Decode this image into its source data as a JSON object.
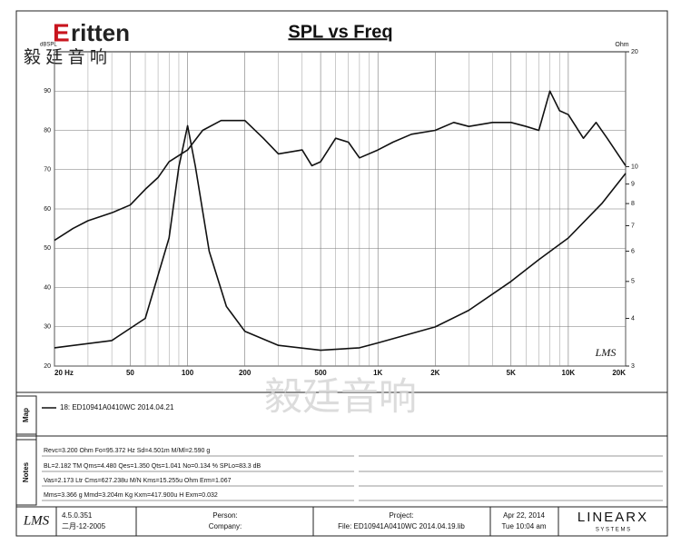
{
  "chart_data": {
    "type": "line",
    "title": "SPL vs Freq",
    "xscale": "log",
    "xlim": [
      20,
      20000
    ],
    "xticks": [
      {
        "value": 20,
        "label": "20 Hz"
      },
      50,
      100,
      200,
      500,
      {
        "value": 1000,
        "label": "1K"
      },
      {
        "value": 2000,
        "label": "2K"
      },
      {
        "value": 5000,
        "label": "5K"
      },
      {
        "value": 10000,
        "label": "10K"
      },
      {
        "value": 20000,
        "label": "20K"
      }
    ],
    "xgrid_minor": [
      30,
      40,
      60,
      70,
      80,
      90,
      300,
      400,
      600,
      700,
      800,
      900,
      3000,
      4000,
      6000,
      7000,
      8000,
      9000
    ],
    "y_label": "dBSPL",
    "ylim": [
      20,
      100
    ],
    "yticks": [
      20,
      30,
      40,
      50,
      60,
      70,
      80,
      90
    ],
    "y2_label": "Ohm",
    "y2scale": "log",
    "y2lim": [
      3,
      20
    ],
    "y2ticks": [
      3,
      4,
      5,
      6,
      7,
      8,
      9,
      10,
      20
    ],
    "grid": true,
    "annotation": "LMS",
    "series": [
      {
        "color": "#111111",
        "x": [
          20,
          25,
          30,
          40,
          50,
          60,
          70,
          80,
          100,
          120,
          150,
          200,
          250,
          300,
          400,
          450,
          500,
          600,
          700,
          800,
          1000,
          1200,
          1500,
          2000,
          2500,
          3000,
          4000,
          5000,
          6000,
          7000,
          8000,
          9000,
          10000,
          12000,
          14000,
          16000,
          20000
        ],
        "values": [
          52,
          55,
          57,
          59,
          61,
          65,
          68,
          72,
          75,
          80,
          82.5,
          82.5,
          78,
          74,
          75,
          71,
          72,
          78,
          77,
          73,
          75,
          77,
          79,
          80,
          82,
          81,
          82,
          82,
          81,
          80,
          90,
          85,
          84,
          78,
          82,
          78,
          71
        ]
      },
      {
        "color": "#111111",
        "axis": "y2",
        "x": [
          20,
          40,
          60,
          80,
          90,
          100,
          110,
          130,
          160,
          200,
          300,
          500,
          800,
          1000,
          2000,
          3000,
          5000,
          7000,
          10000,
          15000,
          20000
        ],
        "values": [
          3.35,
          3.5,
          4.0,
          6.5,
          10,
          12.8,
          10,
          6,
          4.3,
          3.7,
          3.4,
          3.3,
          3.35,
          3.45,
          3.8,
          4.2,
          5.0,
          5.7,
          6.5,
          8.0,
          9.6
        ]
      }
    ]
  },
  "header": {
    "brand": "ritten",
    "brand_initial": "E",
    "brand_cn": "毅 廷 音 响",
    "watermark": "毅廷音响"
  },
  "map": {
    "label": "Map",
    "legend": "18: ED10941A0410WC 2014.04.21"
  },
  "notes": {
    "label": "Notes",
    "lines": [
      "Revc=3.200 Ohm  Fo=95.372 Hz  Sd=4.501m  M/Ml=2.590 g",
      "BL=2.182 TM  Qms=4.480  Qes=1.350  Qts=1.041  No=0.134 %  SPLo=83.3 dB",
      "Vas=2.173 Ltr  Cms=627.238u M/N  Kms=15.255u Ohm  Erm=1.067",
      "Mms=3.366 g  Mmd=3.204m Kg  Kxm=417.900u H  Exm=0.032"
    ]
  },
  "footer": {
    "logo": "LMS",
    "version": "4.5.0.351",
    "build_date": "二月-12-2005",
    "person": "Person:",
    "company": "Company:",
    "project": "Project:",
    "file": "File: ED10941A0410WC 2014.04.19.lib",
    "date": "Apr 22, 2014",
    "time": "Tue 10:04 am",
    "maker": "LINEARX",
    "maker_sub": "S Y S T E M S"
  }
}
